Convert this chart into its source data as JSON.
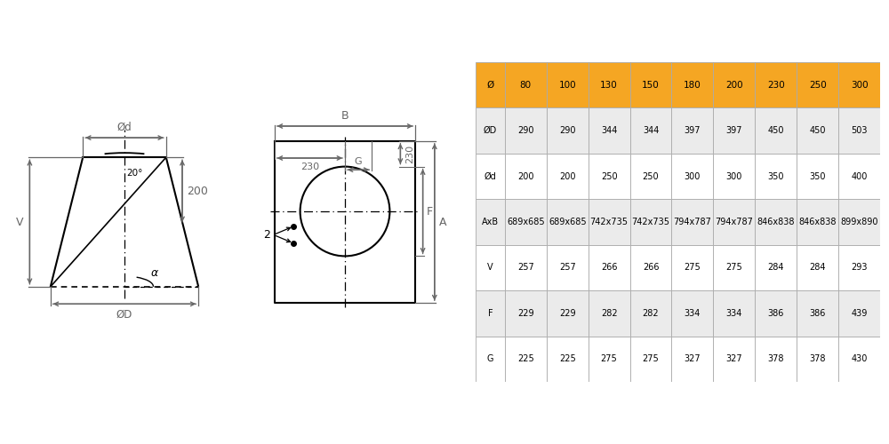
{
  "table_headers": [
    "Ø",
    "80",
    "100",
    "130",
    "150",
    "180",
    "200",
    "230",
    "250",
    "300"
  ],
  "table_rows": [
    [
      "ØD",
      "290",
      "290",
      "344",
      "344",
      "397",
      "397",
      "450",
      "450",
      "503"
    ],
    [
      "Ød",
      "200",
      "200",
      "250",
      "250",
      "300",
      "300",
      "350",
      "350",
      "400"
    ],
    [
      "AxB",
      "689x685",
      "689x685",
      "742x735",
      "742x735",
      "794x787",
      "794x787",
      "846x838",
      "846x838",
      "899x890"
    ],
    [
      "V",
      "257",
      "257",
      "266",
      "266",
      "275",
      "275",
      "284",
      "284",
      "293"
    ],
    [
      "F",
      "229",
      "229",
      "282",
      "282",
      "334",
      "334",
      "386",
      "386",
      "439"
    ],
    [
      "G",
      "225",
      "225",
      "275",
      "275",
      "327",
      "327",
      "378",
      "378",
      "430"
    ]
  ],
  "header_bg": "#F5A623",
  "header_text": "#000000",
  "row_bg_light": "#EBEBEB",
  "row_bg_white": "#FFFFFF",
  "table_border": "#AAAAAA",
  "bg_color": "#FFFFFF",
  "drawing_color": "#000000",
  "dim_color": "#666666"
}
